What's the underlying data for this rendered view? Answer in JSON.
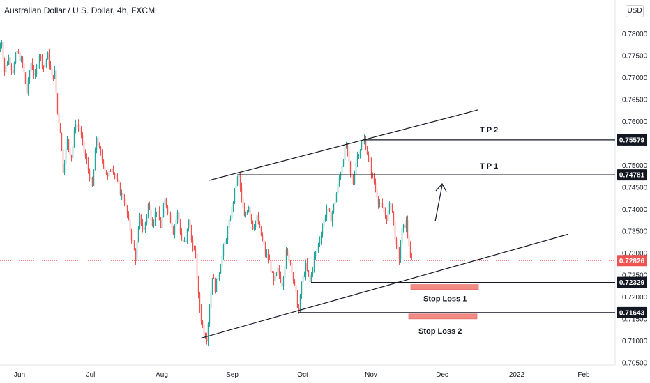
{
  "header": {
    "title": "Australian Dollar / U.S. Dollar, 4h, FXCM",
    "currency_button": "USD"
  },
  "colors": {
    "up": "#26a69a",
    "down": "#ef5350",
    "line": "#131722",
    "current": "#ef5350",
    "stop_box": "#f28b82"
  },
  "chart_data": {
    "type": "candlestick",
    "ylim": [
      0.7045,
      0.7845
    ],
    "y_ticks": [
      "0.78000",
      "0.77500",
      "0.77000",
      "0.76500",
      "0.76000",
      "0.75500",
      "0.75000",
      "0.74500",
      "0.74000",
      "0.73500",
      "0.73000",
      "0.72500",
      "0.72000",
      "0.71500",
      "0.71000",
      "0.70500"
    ],
    "x_ticks": [
      "Jun",
      "Jul",
      "Aug",
      "Sep",
      "Oct",
      "Nov",
      "Dec",
      "2022",
      "Feb"
    ],
    "price_path": [
      [
        0,
        0.776
      ],
      [
        4,
        0.7785
      ],
      [
        8,
        0.7715
      ],
      [
        14,
        0.7745
      ],
      [
        20,
        0.7715
      ],
      [
        26,
        0.776
      ],
      [
        34,
        0.773
      ],
      [
        40,
        0.7665
      ],
      [
        46,
        0.7735
      ],
      [
        52,
        0.77
      ],
      [
        58,
        0.7755
      ],
      [
        64,
        0.7725
      ],
      [
        70,
        0.775
      ],
      [
        76,
        0.77
      ],
      [
        80,
        0.771
      ],
      [
        84,
        0.762
      ],
      [
        88,
        0.758
      ],
      [
        92,
        0.749
      ],
      [
        98,
        0.7555
      ],
      [
        104,
        0.752
      ],
      [
        110,
        0.76
      ],
      [
        116,
        0.758
      ],
      [
        122,
        0.753
      ],
      [
        128,
        0.749
      ],
      [
        134,
        0.745
      ],
      [
        140,
        0.7565
      ],
      [
        146,
        0.752
      ],
      [
        150,
        0.7505
      ],
      [
        156,
        0.747
      ],
      [
        162,
        0.75
      ],
      [
        168,
        0.747
      ],
      [
        174,
        0.744
      ],
      [
        180,
        0.742
      ],
      [
        186,
        0.737
      ],
      [
        192,
        0.732
      ],
      [
        196,
        0.729
      ],
      [
        202,
        0.738
      ],
      [
        208,
        0.735
      ],
      [
        214,
        0.741
      ],
      [
        220,
        0.737
      ],
      [
        226,
        0.74
      ],
      [
        232,
        0.736
      ],
      [
        238,
        0.742
      ],
      [
        244,
        0.739
      ],
      [
        250,
        0.735
      ],
      [
        256,
        0.739
      ],
      [
        262,
        0.733
      ],
      [
        268,
        0.732
      ],
      [
        272,
        0.738
      ],
      [
        276,
        0.733
      ],
      [
        282,
        0.729
      ],
      [
        286,
        0.72
      ],
      [
        290,
        0.715
      ],
      [
        294,
        0.712
      ],
      [
        298,
        0.7108
      ],
      [
        302,
        0.718
      ],
      [
        306,
        0.725
      ],
      [
        310,
        0.722
      ],
      [
        316,
        0.726
      ],
      [
        322,
        0.731
      ],
      [
        328,
        0.735
      ],
      [
        334,
        0.74
      ],
      [
        340,
        0.746
      ],
      [
        344,
        0.7478
      ],
      [
        348,
        0.742
      ],
      [
        352,
        0.738
      ],
      [
        358,
        0.741
      ],
      [
        364,
        0.736
      ],
      [
        370,
        0.738
      ],
      [
        376,
        0.734
      ],
      [
        382,
        0.73
      ],
      [
        388,
        0.728
      ],
      [
        394,
        0.723
      ],
      [
        400,
        0.726
      ],
      [
        406,
        0.723
      ],
      [
        412,
        0.73
      ],
      [
        418,
        0.728
      ],
      [
        424,
        0.722
      ],
      [
        430,
        0.7165
      ],
      [
        434,
        0.723
      ],
      [
        440,
        0.727
      ],
      [
        446,
        0.7232
      ],
      [
        452,
        0.729
      ],
      [
        458,
        0.732
      ],
      [
        464,
        0.736
      ],
      [
        470,
        0.74
      ],
      [
        476,
        0.738
      ],
      [
        482,
        0.742
      ],
      [
        488,
        0.747
      ],
      [
        494,
        0.752
      ],
      [
        498,
        0.7545
      ],
      [
        504,
        0.748
      ],
      [
        508,
        0.746
      ],
      [
        512,
        0.751
      ],
      [
        518,
        0.754
      ],
      [
        524,
        0.7558
      ],
      [
        528,
        0.753
      ],
      [
        532,
        0.75
      ],
      [
        538,
        0.746
      ],
      [
        544,
        0.742
      ],
      [
        550,
        0.74
      ],
      [
        556,
        0.738
      ],
      [
        562,
        0.742
      ],
      [
        566,
        0.737
      ],
      [
        570,
        0.731
      ],
      [
        574,
        0.729
      ],
      [
        578,
        0.735
      ],
      [
        584,
        0.737
      ],
      [
        588,
        0.732
      ],
      [
        590,
        0.7283
      ]
    ]
  },
  "levels": {
    "tp2": {
      "label": "T P 2",
      "value": "0.75579",
      "price": 0.75579
    },
    "tp1": {
      "label": "T P 1",
      "value": "0.74781",
      "price": 0.74781
    },
    "sl1": {
      "label": "Stop Loss 1",
      "value": "0.72329",
      "price": 0.72329
    },
    "sl2": {
      "label": "Stop Loss 2",
      "value": "0.71643",
      "price": 0.71643
    },
    "current": {
      "value": "0.72826",
      "price": 0.72826
    }
  },
  "channel": {
    "upper": [
      [
        300,
        0.74657
      ],
      [
        685,
        0.7626
      ]
    ],
    "lower": [
      [
        288,
        0.7106
      ],
      [
        815,
        0.7343
      ]
    ]
  }
}
